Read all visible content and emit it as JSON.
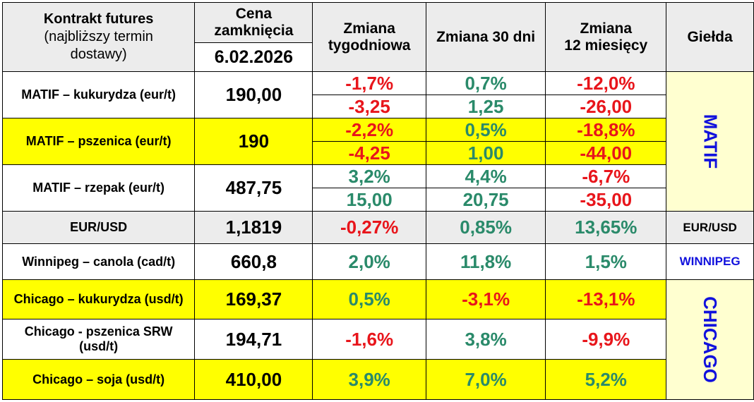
{
  "header": {
    "contract_line1": "Kontrakt futures",
    "contract_line2": "(najbliższy termin",
    "contract_line3": "dostawy)",
    "price_line1": "Cena",
    "price_line2": "zamknięcia",
    "date": "6.02.2026",
    "weekly_line1": "Zmiana",
    "weekly_line2": "tygodniowa",
    "days30": "Zmiana 30 dni",
    "months12_line1": "Zmiana",
    "months12_line2": "12 miesięcy",
    "exchange": "Giełda"
  },
  "rows": [
    {
      "name": "MATIF – kukurydza  (eur/t)",
      "price": "190,00",
      "weekly_pct": "-1,7%",
      "weekly_abs": "-3,25",
      "d30_pct": "0,7%",
      "d30_abs": "1,25",
      "m12_pct": "-12,0%",
      "m12_abs": "-26,00"
    },
    {
      "name": "MATIF – pszenica (eur/t)",
      "price": "190",
      "weekly_pct": "-2,2%",
      "weekly_abs": "-4,25",
      "d30_pct": "0,5%",
      "d30_abs": "1,00",
      "m12_pct": "-18,8%",
      "m12_abs": "-44,00"
    },
    {
      "name": "MATIF – rzepak (eur/t)",
      "price": "487,75",
      "weekly_pct": "3,2%",
      "weekly_abs": "15,00",
      "d30_pct": "4,4%",
      "d30_abs": "20,75",
      "m12_pct": "-6,7%",
      "m12_abs": "-35,00"
    },
    {
      "name": "EUR/USD",
      "price": "1,1819",
      "weekly": "-0,27%",
      "d30": "0,85%",
      "m12": "13,65%"
    },
    {
      "name": "Winnipeg – canola (cad/t)",
      "price": "660,8",
      "weekly": "2,0%",
      "d30": "11,8%",
      "m12": "1,5%"
    },
    {
      "name": "Chicago – kukurydza (usd/t)",
      "price": "169,37",
      "weekly": "0,5%",
      "d30": "-3,1%",
      "m12": "-13,1%"
    },
    {
      "name_line1": "Chicago - pszenica SRW",
      "name_line2": "(usd/t)",
      "price": "194,71",
      "weekly": "-1,6%",
      "d30": "3,8%",
      "m12": "-9,9%"
    },
    {
      "name": "Chicago – soja (usd/t)",
      "price": "410,00",
      "weekly": "3,9%",
      "d30": "7,0%",
      "m12": "5,2%"
    }
  ],
  "exchanges": {
    "matif": "MATIF",
    "eurusd": "EUR/USD",
    "winnipeg": "WINNIPEG",
    "chicago": "CHICAGO"
  },
  "colors": {
    "negative": "#e8151b",
    "positive": "#2a8a6a",
    "exchange": "#1111dd",
    "highlight": "#ffff00",
    "header_bg": "#ececec"
  }
}
